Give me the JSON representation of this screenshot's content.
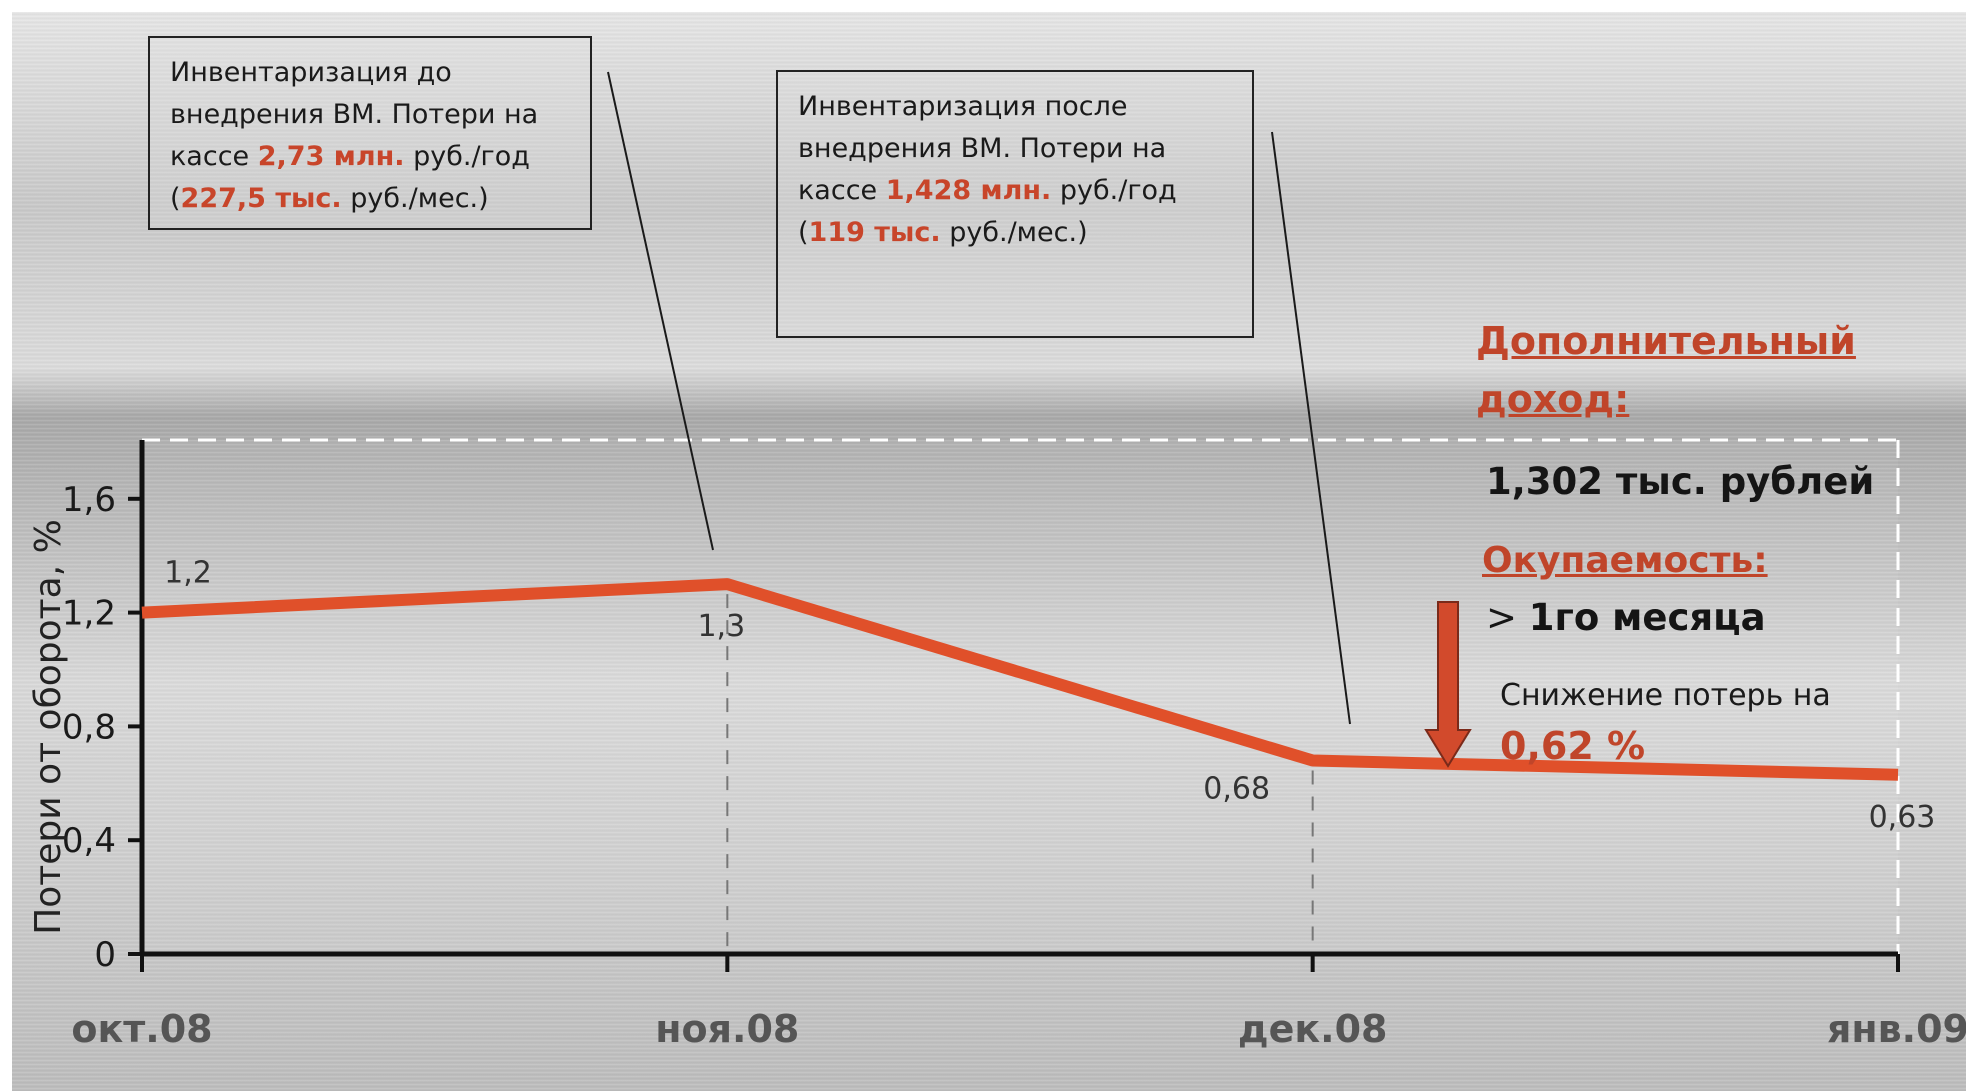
{
  "chart_data": {
    "type": "line",
    "ylabel": "Потери от оборота, %",
    "categories": [
      "окт.08",
      "ноя.08",
      "дек.08",
      "янв.09"
    ],
    "series": [
      {
        "values": [
          1.2,
          1.3,
          0.68,
          0.63
        ],
        "value_labels": [
          "1,2",
          "1,3",
          "0,68",
          "0,63"
        ]
      }
    ],
    "ylim": [
      0,
      1.8
    ],
    "yticks": [
      0,
      0.4,
      0.8,
      1.2,
      1.6
    ],
    "ytick_labels": [
      "0",
      "0,4",
      "0,8",
      "1,2",
      "1,6"
    ],
    "grid": false,
    "line_color": "#e0502a"
  },
  "callouts": {
    "before": {
      "line1": "Инвентаризация до",
      "line2": "внедрения ВМ. Потери на",
      "line3_pre": "кассе ",
      "line3_hl": "2,73 млн.",
      "line3_post": " руб./год",
      "line4_pre": "(",
      "line4_hl": "227,5 тыс.",
      "line4_post": " руб./мес.)"
    },
    "after": {
      "line1": "Инвентаризация после",
      "line2": "внедрения ВМ. Потери на",
      "line3_pre": "кассе ",
      "line3_hl": "1,428 млн.",
      "line3_post": " руб./год",
      "line4_pre": "(",
      "line4_hl": "119 тыс.",
      "line4_post": " руб./мес.)"
    }
  },
  "summary": {
    "extra_income_line1": "Дополнительный",
    "extra_income_line2": "доход:",
    "extra_income_value": "1,302 тыс. рублей",
    "payback_title": "Окупаемость:",
    "payback_value_sign": ">",
    "payback_value": "1го месяца",
    "reduction_text": "Снижение потерь на",
    "reduction_value": "0,62 %"
  },
  "colors": {
    "accent": "#c8452a",
    "arrow": "#d24a2c"
  }
}
